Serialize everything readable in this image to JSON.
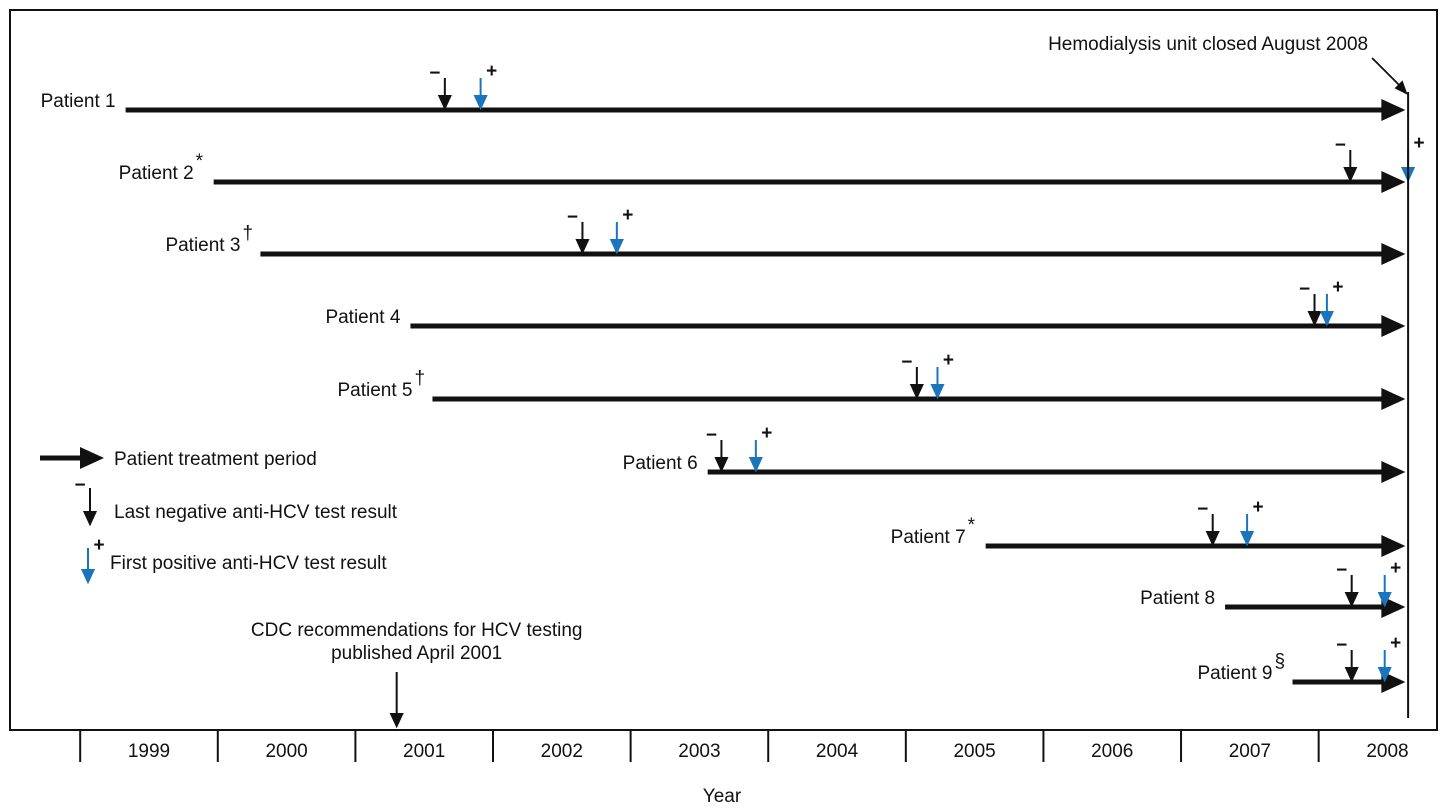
{
  "chart_data": {
    "type": "timeline",
    "xlabel": "Year",
    "xlim": [
      1998.49,
      2008.86
    ],
    "xticks": [
      1999,
      2000,
      2001,
      2002,
      2003,
      2004,
      2005,
      2006,
      2007,
      2008
    ],
    "colors": {
      "period": "#111111",
      "negative": "#111111",
      "positive": "#1a75bc"
    },
    "negative_symbol": "−",
    "positive_symbol": "+",
    "series": [
      {
        "name": "Patient 1",
        "start": 1999.33,
        "end": 2008.63,
        "last_negative": 2001.65,
        "first_positive": 2001.91
      },
      {
        "name": "Patient 2",
        "note": "*",
        "start": 1999.97,
        "end": 2008.63,
        "last_negative": 2008.23,
        "first_positive": 2008.65
      },
      {
        "name": "Patient 3",
        "note": "†",
        "start": 2000.31,
        "end": 2008.63,
        "last_negative": 2002.65,
        "first_positive": 2002.9
      },
      {
        "name": "Patient 4",
        "start": 2001.4,
        "end": 2008.63,
        "last_negative": 2007.97,
        "first_positive": 2008.06
      },
      {
        "name": "Patient 5",
        "note": "†",
        "start": 2001.56,
        "end": 2008.63,
        "last_negative": 2005.08,
        "first_positive": 2005.23
      },
      {
        "name": "Patient 6",
        "start": 2003.56,
        "end": 2008.63,
        "last_negative": 2003.66,
        "first_positive": 2003.91
      },
      {
        "name": "Patient 7",
        "note": "*",
        "start": 2005.58,
        "end": 2008.63,
        "last_negative": 2007.23,
        "first_positive": 2007.48
      },
      {
        "name": "Patient 8",
        "start": 2007.32,
        "end": 2008.63,
        "last_negative": 2008.24,
        "first_positive": 2008.48
      },
      {
        "name": "Patient 9",
        "note": "§",
        "start": 2007.81,
        "end": 2008.63,
        "last_negative": 2008.24,
        "first_positive": 2008.48
      }
    ],
    "legend": {
      "period": "Patient treatment period",
      "negative": "Last negative anti-HCV test result",
      "positive": "First positive anti-HCV test result"
    },
    "annotations": [
      {
        "lines": [
          "Hemodialysis unit closed August 2008"
        ],
        "x": 2008.65
      },
      {
        "lines": [
          "CDC recommendations for HCV testing",
          "published April 2001"
        ],
        "x": 2001.3
      }
    ]
  }
}
